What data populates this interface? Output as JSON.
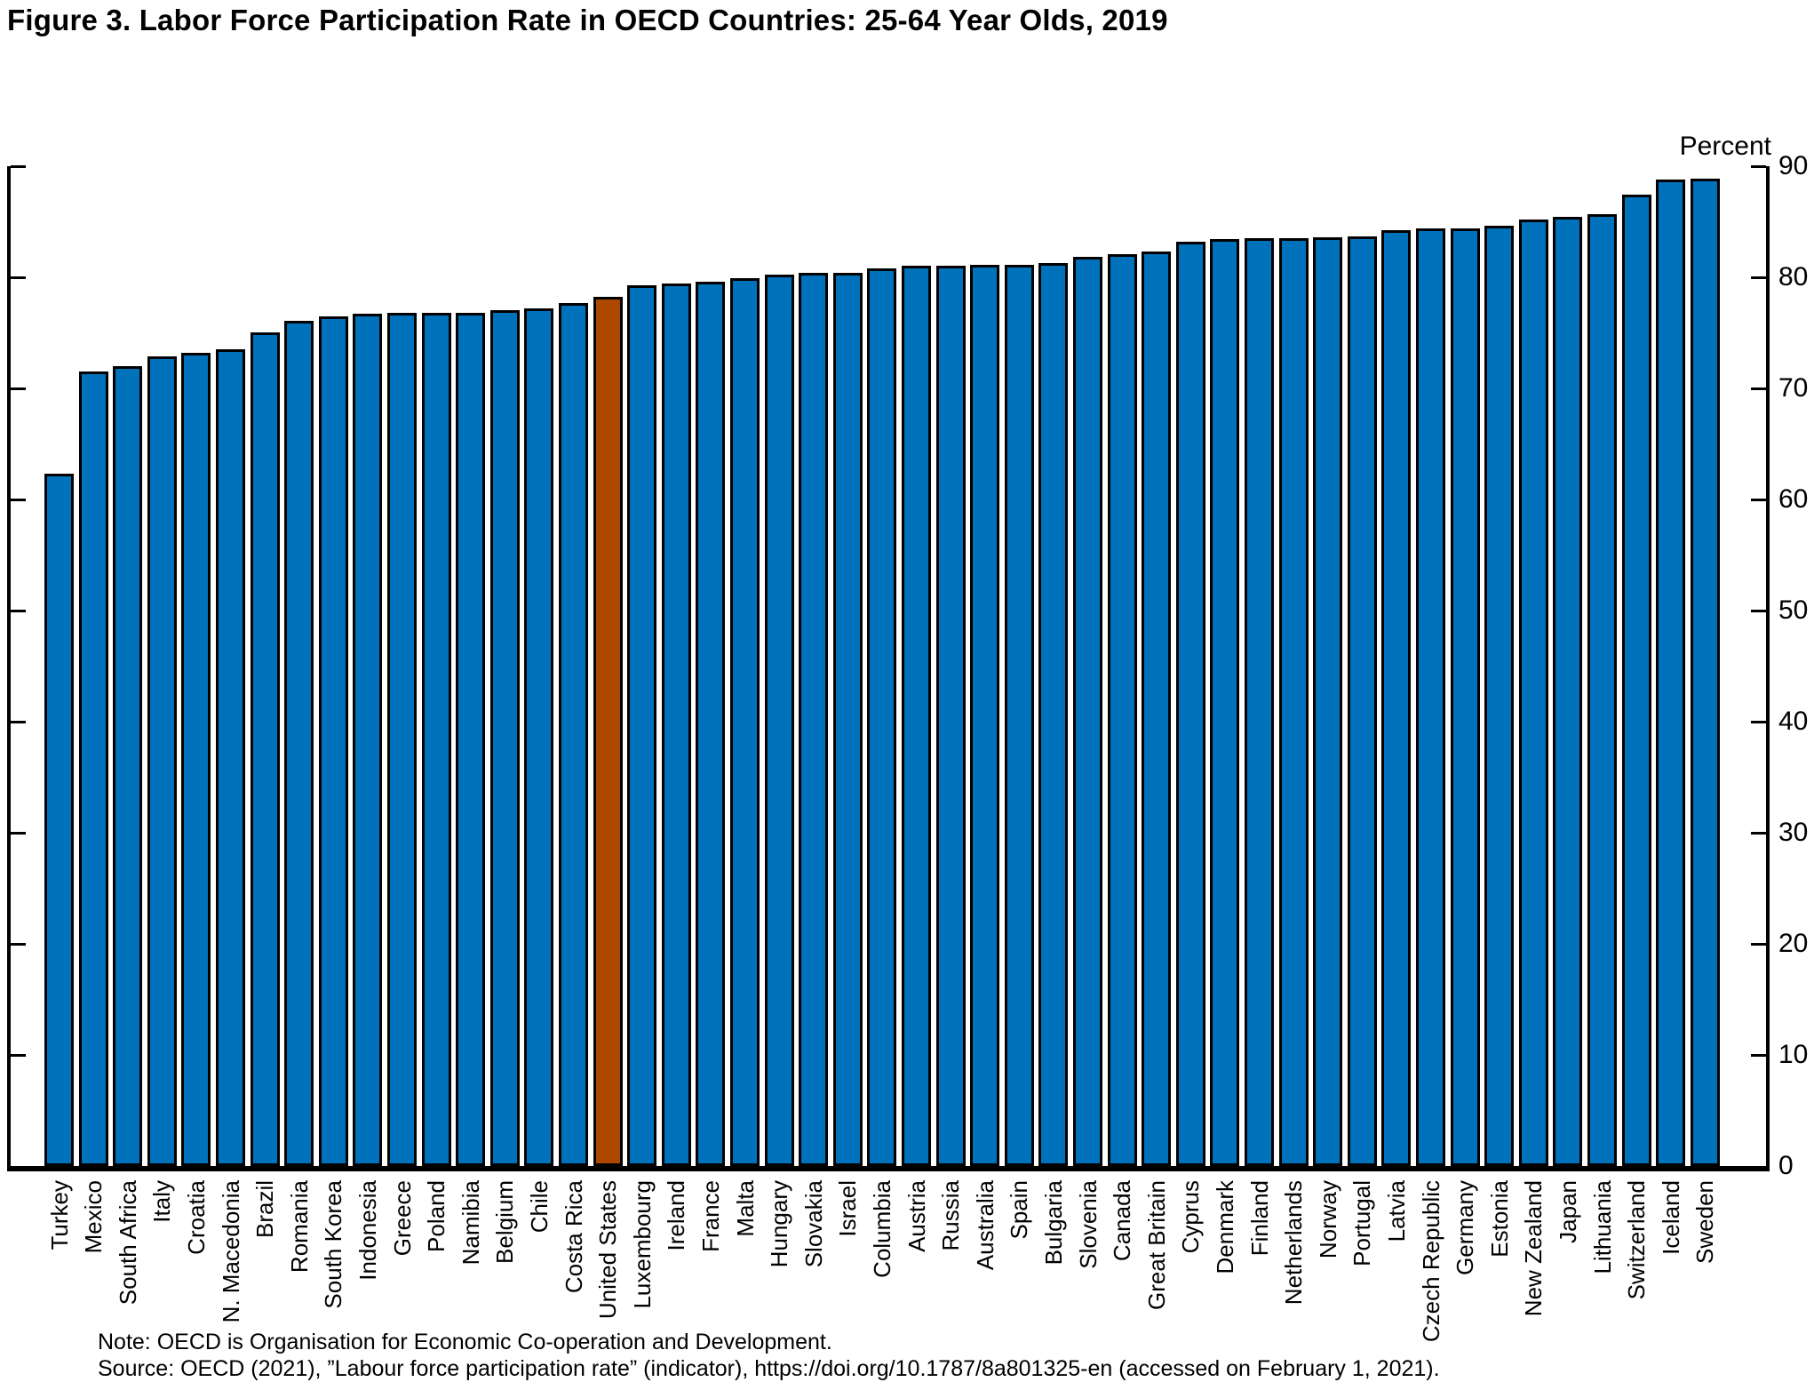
{
  "title": "Figure 3. Labor Force Participation Rate in OECD Countries: 25-64 Year Olds, 2019",
  "footer": {
    "note": "Note: OECD is Organisation for Economic Co-operation and Development.",
    "source": "Source: OECD (2021), ”Labour force participation rate” (indicator), https://doi.org/10.1787/8a801325-en (accessed on February 1, 2021)."
  },
  "chart_data": {
    "type": "bar",
    "title": "Figure 3. Labor Force Participation Rate in OECD Countries: 25-64 Year Olds, 2019",
    "xlabel": "",
    "ylabel": "Percent",
    "unit_label": "Percent",
    "ylim": [
      0,
      90
    ],
    "y_ticks": [
      0,
      10,
      20,
      30,
      40,
      50,
      60,
      70,
      80,
      90
    ],
    "grid": false,
    "legend_position": "none",
    "bar_color": "#0072BC",
    "bar_border_color": "#000000",
    "highlight_category": "United States",
    "highlight_color": "#AC4800",
    "categories": [
      "Turkey",
      "Mexico",
      "South Africa",
      "Italy",
      "Croatia",
      "N. Macedonia",
      "Brazil",
      "Romania",
      "South Korea",
      "Indonesia",
      "Greece",
      "Poland",
      "Namibia",
      "Belgium",
      "Chile",
      "Costa Rica",
      "United States",
      "Luxembourg",
      "Ireland",
      "France",
      "Malta",
      "Hungary",
      "Slovakia",
      "Israel",
      "Columbia",
      "Austria",
      "Russia",
      "Australia",
      "Spain",
      "Bulgaria",
      "Slovenia",
      "Canada",
      "Great Britain",
      "Cyprus",
      "Denmark",
      "Finland",
      "Netherlands",
      "Norway",
      "Portugal",
      "Latvia",
      "Czech Republic",
      "Germany",
      "Estonia",
      "New Zealand",
      "Japan",
      "Lithuania",
      "Switzerland",
      "Iceland",
      "Sweden"
    ],
    "values": [
      62.3,
      71.5,
      72.0,
      72.9,
      73.2,
      73.5,
      75.0,
      76.1,
      76.5,
      76.7,
      76.8,
      76.8,
      76.8,
      77.0,
      77.2,
      77.7,
      78.2,
      79.3,
      79.4,
      79.6,
      79.9,
      80.2,
      80.4,
      80.4,
      80.8,
      81.0,
      81.0,
      81.1,
      81.1,
      81.3,
      81.8,
      82.1,
      82.3,
      83.2,
      83.4,
      83.5,
      83.5,
      83.6,
      83.7,
      84.2,
      84.4,
      84.4,
      84.6,
      85.2,
      85.4,
      85.7,
      87.4,
      88.8,
      88.9
    ]
  }
}
